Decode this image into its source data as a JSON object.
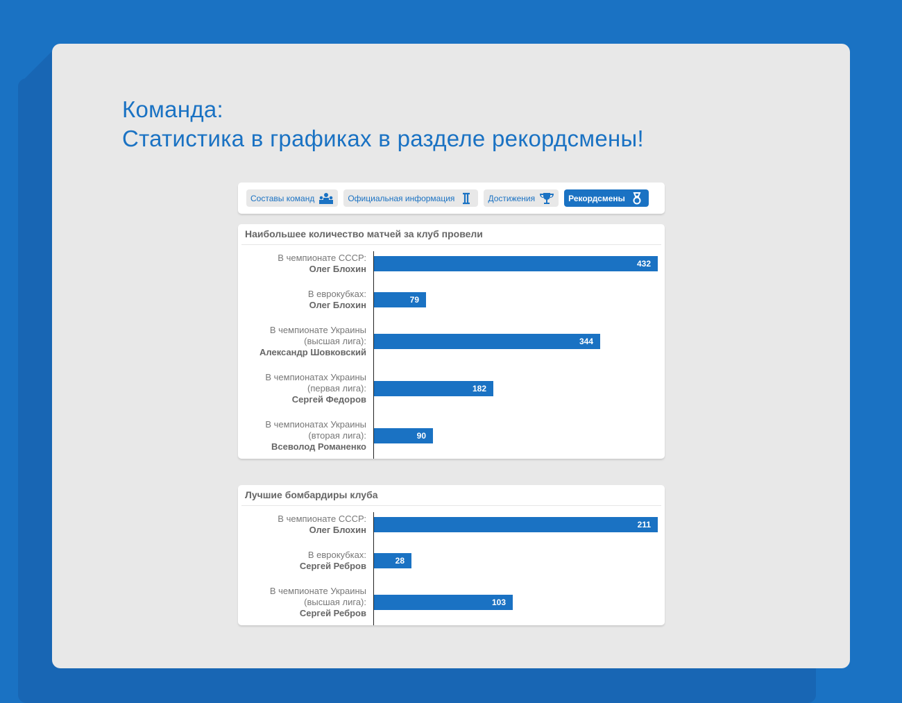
{
  "title_line1": "Команда:",
  "title_line2": "Статистика в графиках в разделе рекордсмены!",
  "tabs": [
    {
      "label": "Составы команд",
      "icon": "team-icon",
      "active": false
    },
    {
      "label": "Официальная информация",
      "icon": "info-icon",
      "active": false
    },
    {
      "label": "Достижения",
      "icon": "trophy-icon",
      "active": false
    },
    {
      "label": "Рекордсмены",
      "icon": "medal-icon",
      "active": true
    }
  ],
  "accent": "#1a72c3",
  "chart_data": [
    {
      "type": "bar",
      "title": "Наибольшее количество матчей за клуб провели",
      "categories": [
        {
          "label": [
            "В чемпионате СССР:"
          ],
          "name": "Олег Блохин"
        },
        {
          "label": [
            "В еврокубках:"
          ],
          "name": "Олег Блохин"
        },
        {
          "label": [
            "В чемпионате Украины",
            "(высшая лига):"
          ],
          "name": "Александр Шовковский"
        },
        {
          "label": [
            "В чемпионатах Украины",
            "(первая лига):"
          ],
          "name": "Сергей Федоров"
        },
        {
          "label": [
            "В чемпионатах Украины",
            "(вторая лига):"
          ],
          "name": "Всеволод Романенко"
        }
      ],
      "values": [
        432,
        79,
        344,
        182,
        90
      ]
    },
    {
      "type": "bar",
      "title": "Лучшие бомбардиры клуба",
      "categories": [
        {
          "label": [
            "В чемпионате СССР:"
          ],
          "name": "Олег Блохин"
        },
        {
          "label": [
            "В еврокубках:"
          ],
          "name": "Сергей Ребров"
        },
        {
          "label": [
            "В чемпионате Украины",
            "(высшая лига):"
          ],
          "name": "Сергей Ребров"
        }
      ],
      "values": [
        211,
        28,
        103
      ]
    }
  ]
}
